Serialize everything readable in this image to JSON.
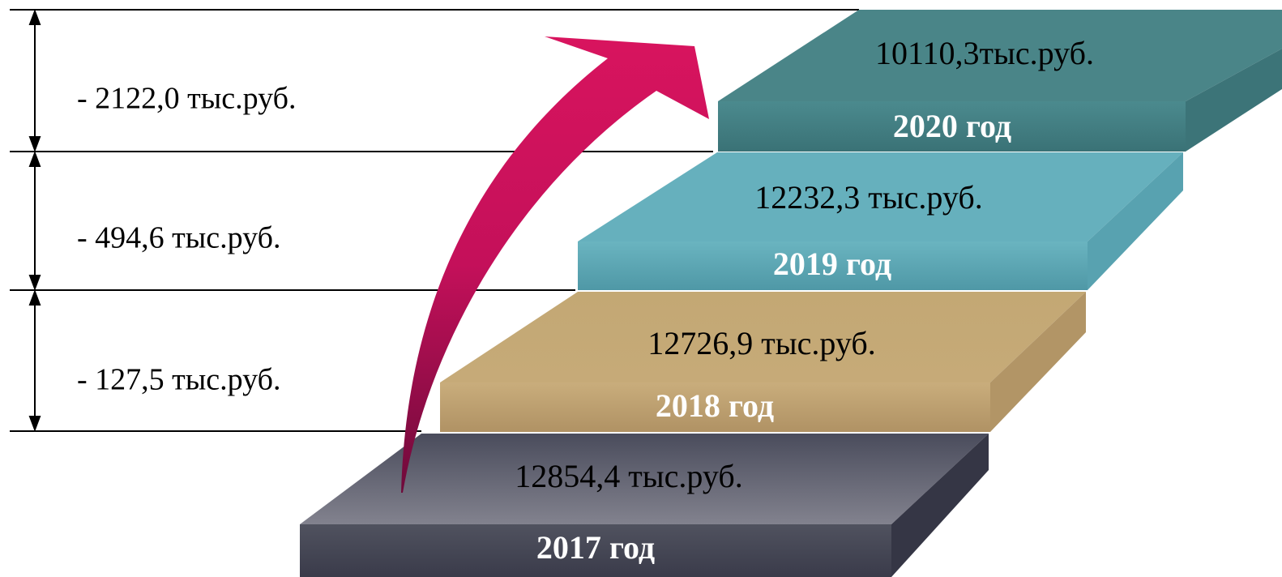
{
  "steps": [
    {
      "value": "12854,4 тыс.руб.",
      "year": "2017 год"
    },
    {
      "value": "12726,9 тыс.руб.",
      "year": "2018 год"
    },
    {
      "value": "12232,3 тыс.руб.",
      "year": "2019 год"
    },
    {
      "value": "10110,3тыс.руб.",
      "year": "2020 год"
    }
  ],
  "differences": [
    "- 2122,0 тыс.руб.",
    "- 494,6 тыс.руб.",
    "- 127,5 тыс.руб."
  ]
}
